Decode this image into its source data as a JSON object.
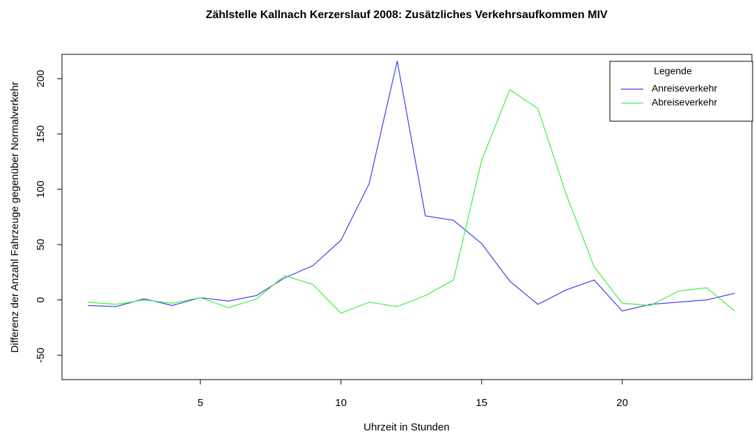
{
  "chart_data": {
    "type": "line",
    "title": "Zählstelle Kallnach Kerzerslauf 2008: Zusätzliches Verkehrsaufkommen MIV",
    "x_label": "Uhrzeit in Stunden",
    "y_label": "Differenz der Anzahl Fahrzeuge gegenüber Normalverkehr",
    "x": [
      1,
      2,
      3,
      4,
      5,
      6,
      7,
      8,
      9,
      10,
      11,
      12,
      13,
      14,
      15,
      16,
      17,
      18,
      19,
      20,
      21,
      22,
      23,
      24
    ],
    "series": [
      {
        "name": "Anreiseverkehr",
        "color": "#3b3bf0",
        "values": [
          -5,
          -6,
          1,
          -5,
          2,
          -1,
          4,
          20,
          31,
          54,
          105,
          216,
          76,
          72,
          51,
          17,
          -4,
          9,
          18,
          -10,
          -4,
          -2,
          0,
          6
        ]
      },
      {
        "name": "Abreiseverkehr",
        "color": "#3cf03c",
        "values": [
          -2,
          -4,
          0,
          -3,
          2,
          -7,
          1,
          22,
          14,
          -12,
          -2,
          -6,
          4,
          18,
          126,
          190,
          173,
          96,
          30,
          -3,
          -5,
          8,
          11,
          -10
        ]
      }
    ],
    "xlim": [
      0.08,
      24.61
    ],
    "xticks": [
      5,
      10,
      15,
      20
    ],
    "ylim": [
      -72,
      222
    ],
    "yticks": [
      -50,
      0,
      50,
      100,
      150,
      200
    ],
    "legend_title": "Legende",
    "legend_position": "topright"
  }
}
